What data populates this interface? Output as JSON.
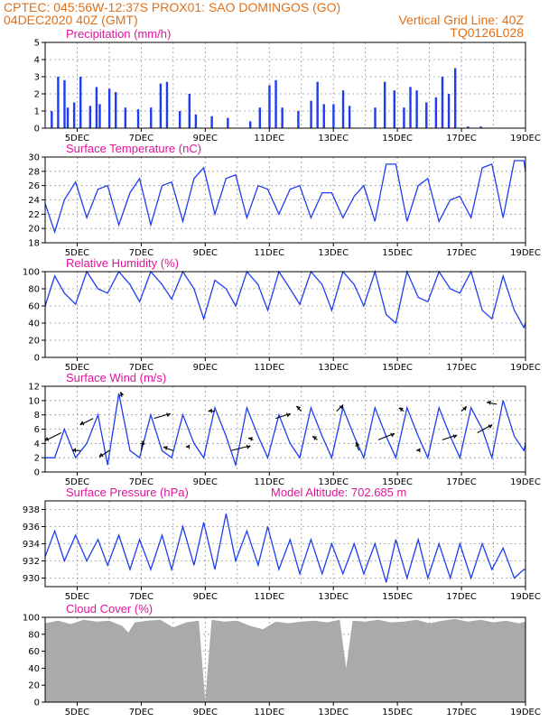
{
  "header": {
    "line1": "CPTEC:   045:56W-12:37S   PROX01: SAO DOMINGOS (GO)",
    "date": "04DEC2020 40Z (GMT)",
    "grid_note": "Vertical Grid Line: 40Z",
    "code": "TQ0126L028"
  },
  "colors": {
    "header": "#e07018",
    "title": "#e0159a",
    "series": "#1f3df0",
    "cloud": "#aaaaaa",
    "grid": "#999999"
  },
  "x_ticks": [
    "5DEC",
    "7DEC",
    "9DEC",
    "11DEC",
    "13DEC",
    "15DEC",
    "17DEC",
    "19DEC"
  ],
  "chart_data": [
    {
      "type": "bar",
      "title": "Precipitation (mm/h)",
      "x_range": [
        "04DEC",
        "19DEC"
      ],
      "ylim": [
        0,
        5
      ],
      "yticks": [
        0,
        1,
        2,
        3,
        4,
        5
      ],
      "grid": true,
      "x": [
        4.2,
        4.4,
        4.6,
        4.7,
        4.9,
        5.1,
        5.4,
        5.6,
        5.7,
        6.0,
        6.2,
        6.5,
        6.9,
        7.3,
        7.6,
        7.8,
        8.2,
        8.5,
        8.7,
        9.2,
        9.7,
        10.4,
        10.7,
        11.0,
        11.2,
        11.4,
        11.9,
        12.3,
        12.5,
        12.7,
        13.0,
        13.3,
        13.5,
        14.3,
        14.6,
        14.9,
        15.2,
        15.4,
        15.6,
        15.9,
        16.2,
        16.4,
        16.6,
        16.8,
        17.2,
        17.6
      ],
      "values": [
        1.0,
        3.0,
        2.8,
        1.2,
        1.5,
        3.0,
        1.3,
        2.4,
        1.4,
        2.3,
        2.1,
        1.2,
        1.1,
        1.2,
        2.6,
        2.7,
        1.0,
        2.0,
        0.8,
        0.7,
        0.6,
        0.4,
        1.2,
        2.5,
        2.8,
        1.2,
        1.0,
        1.6,
        2.7,
        1.4,
        1.4,
        2.2,
        1.3,
        1.2,
        2.7,
        2.2,
        1.2,
        2.4,
        2.2,
        1.5,
        1.8,
        3.0,
        2.0,
        3.5,
        0.1,
        0.1
      ]
    },
    {
      "type": "line",
      "title": "Surface Temperature (nC)",
      "x_range": [
        "04DEC",
        "19DEC"
      ],
      "ylim": [
        18,
        30
      ],
      "yticks": [
        18,
        20,
        22,
        24,
        26,
        28,
        30
      ],
      "grid": true,
      "x": [
        4.0,
        4.3,
        4.6,
        4.95,
        5.3,
        5.65,
        5.95,
        6.3,
        6.65,
        6.95,
        7.3,
        7.65,
        7.95,
        8.3,
        8.65,
        8.95,
        9.3,
        9.65,
        9.95,
        10.3,
        10.65,
        10.95,
        11.3,
        11.65,
        11.95,
        12.3,
        12.65,
        12.95,
        13.3,
        13.65,
        13.95,
        14.3,
        14.65,
        14.95,
        15.3,
        15.65,
        15.95,
        16.3,
        16.65,
        16.95,
        17.3,
        17.65,
        17.95,
        18.3,
        18.65,
        18.95,
        19.0
      ],
      "values": [
        23.5,
        19.5,
        24,
        26.5,
        21.5,
        25.5,
        26,
        20.5,
        25,
        27,
        20.5,
        26,
        26.5,
        21,
        27,
        28.5,
        22,
        27,
        27.5,
        21.5,
        26,
        25.5,
        22,
        25.5,
        26,
        21.5,
        25,
        25,
        21.5,
        24.5,
        26,
        21,
        29,
        29,
        21,
        26,
        27,
        21,
        24,
        24.5,
        21.5,
        28.5,
        29,
        21.5,
        29.5,
        29.5,
        28
      ]
    },
    {
      "type": "line",
      "title": "Relative Humidity (%)",
      "x_range": [
        "04DEC",
        "19DEC"
      ],
      "ylim": [
        0,
        100
      ],
      "yticks": [
        0,
        20,
        40,
        60,
        80,
        100
      ],
      "grid": true,
      "x": [
        4.0,
        4.3,
        4.6,
        4.95,
        5.3,
        5.65,
        5.95,
        6.3,
        6.65,
        6.95,
        7.3,
        7.65,
        7.95,
        8.3,
        8.65,
        8.95,
        9.3,
        9.65,
        9.95,
        10.3,
        10.65,
        10.95,
        11.3,
        11.65,
        11.95,
        12.3,
        12.65,
        12.95,
        13.3,
        13.65,
        13.95,
        14.3,
        14.65,
        14.95,
        15.3,
        15.65,
        15.95,
        16.3,
        16.65,
        16.95,
        17.3,
        17.65,
        17.95,
        18.3,
        18.65,
        18.95,
        19.0
      ],
      "values": [
        60,
        95,
        75,
        62,
        100,
        80,
        75,
        100,
        85,
        65,
        100,
        85,
        68,
        100,
        80,
        45,
        90,
        80,
        60,
        100,
        85,
        55,
        100,
        80,
        62,
        100,
        85,
        55,
        100,
        85,
        60,
        100,
        50,
        40,
        100,
        70,
        65,
        100,
        80,
        75,
        100,
        55,
        45,
        95,
        55,
        35,
        40
      ]
    },
    {
      "type": "line",
      "title": "Surface Wind (m/s)",
      "x_range": [
        "04DEC",
        "19DEC"
      ],
      "ylim": [
        0,
        12
      ],
      "yticks": [
        0,
        2,
        4,
        6,
        8,
        10,
        12
      ],
      "grid": true,
      "x": [
        4.0,
        4.3,
        4.6,
        4.95,
        5.3,
        5.65,
        5.95,
        6.3,
        6.65,
        6.95,
        7.3,
        7.65,
        7.95,
        8.3,
        8.65,
        8.95,
        9.3,
        9.65,
        9.95,
        10.3,
        10.65,
        10.95,
        11.3,
        11.65,
        11.95,
        12.3,
        12.65,
        12.95,
        13.3,
        13.65,
        13.95,
        14.3,
        14.65,
        14.95,
        15.3,
        15.65,
        15.95,
        16.3,
        16.65,
        16.95,
        17.3,
        17.65,
        17.95,
        18.3,
        18.65,
        18.95,
        19.0
      ],
      "values": [
        2,
        2,
        6,
        2,
        4,
        8,
        1,
        11,
        3,
        2,
        8,
        3,
        2,
        8,
        4,
        2,
        9,
        5,
        1,
        9,
        5,
        2,
        8,
        4,
        2,
        9,
        5,
        2,
        9,
        5,
        2,
        9,
        5,
        2,
        9,
        5,
        2,
        9,
        5,
        2,
        9,
        6,
        2,
        10,
        5,
        3,
        4
      ],
      "vectors": [
        {
          "x": 4.5,
          "u": -1.0,
          "v": -0.5
        },
        {
          "x": 5.1,
          "u": -0.5,
          "v": 0.0
        },
        {
          "x": 5.5,
          "u": -0.8,
          "v": -0.4
        },
        {
          "x": 6.0,
          "u": -0.6,
          "v": -0.4
        },
        {
          "x": 6.4,
          "u": -0.1,
          "v": 0.3
        },
        {
          "x": 7.0,
          "u": 0.1,
          "v": 0.6
        },
        {
          "x": 7.4,
          "u": 1.0,
          "v": 0.3
        },
        {
          "x": 8.0,
          "u": -0.6,
          "v": 0.2
        },
        {
          "x": 8.5,
          "u": -0.2,
          "v": 0.0
        },
        {
          "x": 9.3,
          "u": -0.4,
          "v": 0.0
        },
        {
          "x": 9.8,
          "u": 1.2,
          "v": 0.3
        },
        {
          "x": 10.5,
          "u": -0.3,
          "v": 0.1
        },
        {
          "x": 11.2,
          "u": 0.9,
          "v": 0.3
        },
        {
          "x": 12.0,
          "u": -0.3,
          "v": 0.3
        },
        {
          "x": 12.5,
          "u": -0.3,
          "v": 0.2
        },
        {
          "x": 13.1,
          "u": 0.4,
          "v": 0.4
        },
        {
          "x": 13.8,
          "u": -0.2,
          "v": 0.5
        },
        {
          "x": 14.4,
          "u": 1.0,
          "v": 0.4
        },
        {
          "x": 15.2,
          "u": -0.3,
          "v": 0.2
        },
        {
          "x": 15.7,
          "u": -0.2,
          "v": 0.0
        },
        {
          "x": 16.4,
          "u": 0.9,
          "v": 0.3
        },
        {
          "x": 17.0,
          "u": 0.3,
          "v": 0.3
        },
        {
          "x": 17.5,
          "u": 0.9,
          "v": 0.5
        },
        {
          "x": 18.1,
          "u": -0.6,
          "v": 0.1
        }
      ]
    },
    {
      "type": "line",
      "title": "Surface Pressure (hPa)",
      "annotation": "Model Altitude: 702.685 m",
      "x_range": [
        "04DEC",
        "19DEC"
      ],
      "ylim": [
        929,
        939
      ],
      "yticks": [
        930,
        932,
        934,
        936,
        938
      ],
      "grid": true,
      "x": [
        4.0,
        4.3,
        4.6,
        4.95,
        5.3,
        5.65,
        5.95,
        6.3,
        6.65,
        6.95,
        7.3,
        7.65,
        7.95,
        8.3,
        8.65,
        8.95,
        9.3,
        9.65,
        9.95,
        10.3,
        10.65,
        10.95,
        11.3,
        11.65,
        11.95,
        12.3,
        12.65,
        12.95,
        13.3,
        13.65,
        13.95,
        14.3,
        14.65,
        14.95,
        15.3,
        15.65,
        15.95,
        16.3,
        16.65,
        16.95,
        17.3,
        17.65,
        17.95,
        18.3,
        18.65,
        18.95,
        19.0
      ],
      "values": [
        932.5,
        935.5,
        932,
        935,
        932,
        934.5,
        931.5,
        935,
        931,
        934.5,
        931,
        935,
        931,
        936,
        931.5,
        936.5,
        931,
        937.5,
        932,
        935.5,
        931.5,
        936,
        931,
        934.5,
        930.5,
        934.5,
        930.5,
        934,
        930.5,
        934,
        930.5,
        934,
        929.5,
        934.5,
        930,
        934.5,
        930,
        934,
        930,
        934,
        930,
        934,
        931,
        933.5,
        930,
        931,
        931
      ]
    },
    {
      "type": "area",
      "title": "Cloud Cover (%)",
      "x_range": [
        "04DEC",
        "19DEC"
      ],
      "ylim": [
        0,
        100
      ],
      "yticks": [
        0,
        20,
        40,
        60,
        80,
        100
      ],
      "grid": true,
      "x": [
        4.0,
        4.4,
        4.8,
        5.2,
        5.6,
        6.0,
        6.4,
        6.6,
        6.8,
        7.2,
        7.6,
        8.0,
        8.4,
        8.8,
        9.0,
        9.2,
        9.6,
        10.0,
        10.4,
        10.8,
        11.2,
        11.6,
        12.0,
        12.4,
        12.8,
        13.2,
        13.4,
        13.6,
        14.0,
        14.4,
        14.8,
        15.2,
        15.6,
        16.0,
        16.4,
        16.8,
        17.2,
        17.6,
        18.0,
        18.4,
        18.8,
        19.0
      ],
      "values": [
        93,
        96,
        92,
        97,
        95,
        96,
        90,
        82,
        94,
        96,
        97,
        88,
        94,
        96,
        2,
        97,
        95,
        96,
        90,
        86,
        95,
        93,
        95,
        96,
        94,
        97,
        40,
        96,
        95,
        97,
        94,
        95,
        97,
        93,
        96,
        98,
        95,
        97,
        94,
        96,
        93,
        95
      ]
    }
  ]
}
